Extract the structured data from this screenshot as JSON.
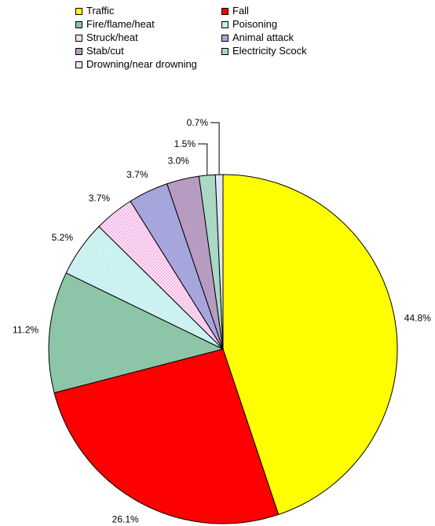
{
  "chart_data": {
    "type": "pie",
    "title": "",
    "legend_position": "top",
    "slices": [
      {
        "name": "Traffic",
        "value": 44.8,
        "label": "44.8%",
        "color": "#ffff00",
        "pattern": "solid"
      },
      {
        "name": "Fall",
        "value": 26.1,
        "label": "26.1%",
        "color": "#ff0000",
        "pattern": "solid"
      },
      {
        "name": "Fire/flame/heat",
        "value": 11.2,
        "label": "11.2%",
        "color": "#8cc5a8",
        "pattern": "solid"
      },
      {
        "name": "Poisoning",
        "value": 5.2,
        "label": "5.2%",
        "color": "#bfeeee",
        "pattern": "dots"
      },
      {
        "name": "Struck/heat",
        "value": 3.7,
        "label": "3.7%",
        "color": "#ffd8f4",
        "pattern": "hatch"
      },
      {
        "name": "Animal attack",
        "value": 3.7,
        "label": "3.7%",
        "color": "#a6a6dc",
        "pattern": "solid"
      },
      {
        "name": "Stab/cut",
        "value": 3.0,
        "label": "3.0%",
        "color": "#b79cc2",
        "pattern": "solid"
      },
      {
        "name": "Electricity Scock",
        "value": 1.5,
        "label": "1.5%",
        "color": "#a9d8c4",
        "pattern": "solid"
      },
      {
        "name": "Drowning/near drowning",
        "value": 0.7,
        "label": "0.7%",
        "color": "#e4e4f6",
        "pattern": "solid"
      }
    ]
  }
}
